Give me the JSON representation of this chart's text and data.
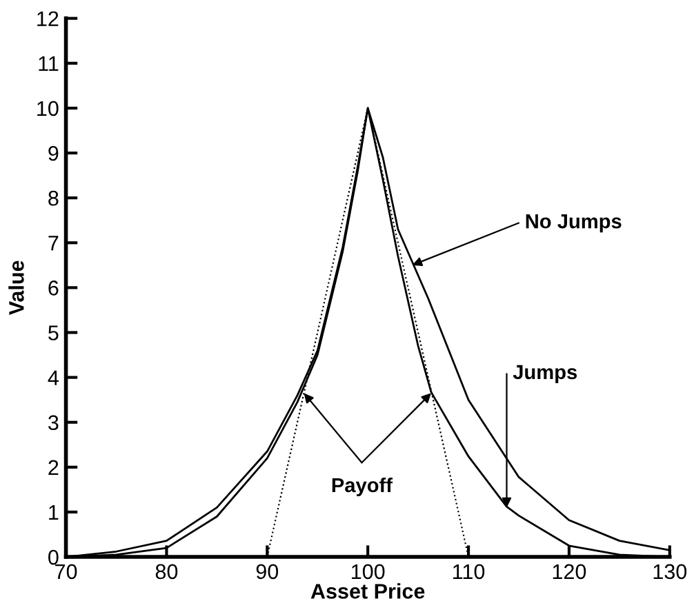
{
  "chart_data": {
    "type": "line",
    "xlabel": "Asset Price",
    "ylabel": "Value",
    "xlim": [
      70,
      130
    ],
    "ylim": [
      0,
      12
    ],
    "xticks": [
      70,
      80,
      90,
      100,
      110,
      120,
      130
    ],
    "yticks": [
      0,
      1,
      2,
      3,
      4,
      5,
      6,
      7,
      8,
      9,
      10,
      11,
      12
    ],
    "grid": false,
    "legend": false,
    "marker": "none",
    "series": [
      {
        "color": "#000000",
        "line_style": "solid",
        "x": [
          70,
          75,
          80,
          85,
          90,
          93,
          95,
          97.5,
          99,
          100,
          101.5,
          103,
          106,
          110,
          115,
          120,
          125,
          130
        ],
        "values": [
          0,
          0.12,
          0.36,
          1.1,
          2.35,
          3.6,
          4.6,
          6.9,
          8.7,
          10,
          8.9,
          7.3,
          5.76,
          3.5,
          1.78,
          0.82,
          0.36,
          0.15
        ]
      },
      {
        "color": "#000000",
        "line_style": "solid",
        "x": [
          70,
          75,
          80,
          85,
          90,
          93,
          95,
          97.5,
          99,
          100,
          101.5,
          103,
          105,
          106.3,
          110,
          113.8,
          115,
          120,
          125,
          130
        ],
        "values": [
          0,
          0.05,
          0.2,
          0.9,
          2.2,
          3.45,
          4.5,
          6.8,
          8.6,
          10,
          8.4,
          6.7,
          4.7,
          3.67,
          2.24,
          1.12,
          0.92,
          0.25,
          0.05,
          0
        ]
      },
      {
        "color": "#000000",
        "line_style": "dotted",
        "x": [
          90,
          100,
          110
        ],
        "values": [
          0,
          10,
          0
        ]
      }
    ],
    "annotations": [
      {
        "text": "No Jumps",
        "x": 104.4,
        "y": 6.5
      },
      {
        "text": "Jumps",
        "x": 113.8,
        "y": 1.1
      },
      {
        "text": "Payoff",
        "x": 106.3,
        "y": 3.65
      }
    ]
  }
}
